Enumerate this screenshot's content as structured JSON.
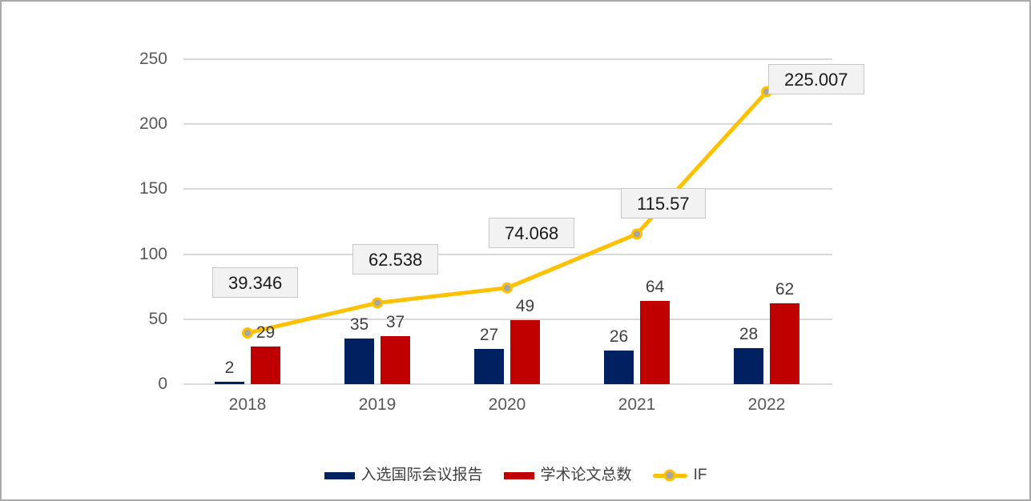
{
  "chart_data": {
    "type": "bar",
    "subtype": "grouped-bars-with-line-overlay",
    "title": "",
    "xlabel": "",
    "ylabel": "",
    "categories": [
      "2018",
      "2019",
      "2020",
      "2021",
      "2022"
    ],
    "series": [
      {
        "name": "入选国际会议报告",
        "type": "bar",
        "color": "#002060",
        "values": [
          2,
          35,
          27,
          26,
          28
        ],
        "value_labels": [
          "2",
          "35",
          "27",
          "26",
          "28"
        ]
      },
      {
        "name": "学术论文总数",
        "type": "bar",
        "color": "#c00000",
        "values": [
          29,
          37,
          49,
          64,
          62
        ],
        "value_labels": [
          "29",
          "37",
          "49",
          "64",
          "62"
        ]
      },
      {
        "name": "IF",
        "type": "line",
        "color": "#ffc000",
        "marker_color": "#a6a6a6",
        "values": [
          39.346,
          62.538,
          74.068,
          115.57,
          225.007
        ],
        "value_labels": [
          "39.346",
          "62.538",
          "74.068",
          "115.57",
          "225.007"
        ],
        "label_style": "boxed"
      }
    ],
    "y_axis": {
      "min": 0,
      "max": 250,
      "tick_interval": 50,
      "ticks": [
        "0",
        "50",
        "100",
        "150",
        "200",
        "250"
      ]
    },
    "grid": true,
    "gridline_color": "#d9d9d9",
    "legend_position": "bottom"
  },
  "colors": {
    "background": "#ffffff",
    "frame_border": "#a9a9a9",
    "bar_series_1": "#002060",
    "bar_series_2": "#c00000",
    "line_series": "#ffc000",
    "line_marker": "#a6a6a6",
    "gridline": "#d9d9d9",
    "axis_text": "#595959",
    "data_label_text": "#404040",
    "if_box_fill": "#f2f2f2",
    "if_box_border": "#c8c8c8"
  },
  "legend": {
    "items": [
      {
        "label": "入选国际会议报告",
        "swatch": "bar",
        "color": "#002060"
      },
      {
        "label": "学术论文总数",
        "swatch": "bar",
        "color": "#c00000"
      },
      {
        "label": "IF",
        "swatch": "line",
        "color": "#ffc000"
      }
    ]
  }
}
